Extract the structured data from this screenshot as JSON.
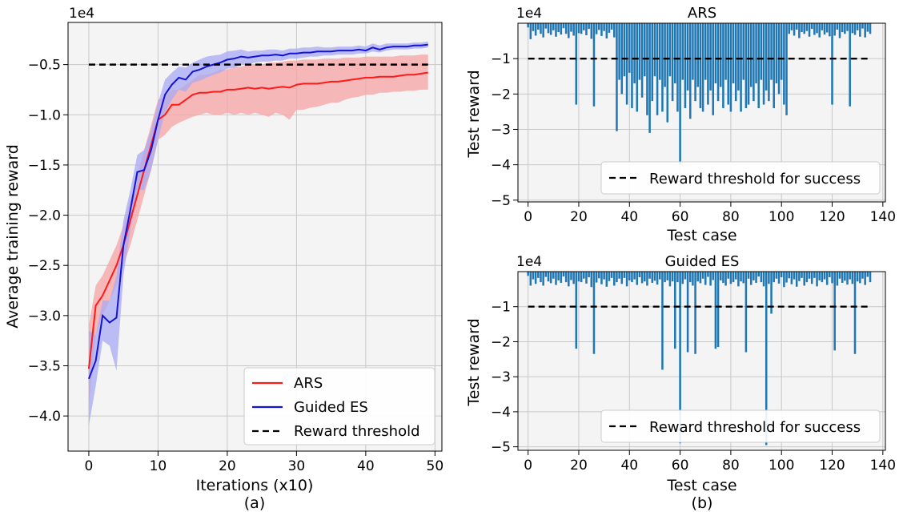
{
  "chart_data": [
    {
      "type": "line",
      "id": "a",
      "xlabel": "Iterations (x10)",
      "ylabel": "Average training reward",
      "caption": "(a)",
      "offset_label": "1e4",
      "xlim": [
        -3,
        51
      ],
      "ylim": [
        -4.35,
        -0.08
      ],
      "xticks": [
        0,
        10,
        20,
        30,
        40,
        50
      ],
      "yticks": [
        -0.5,
        -1.0,
        -1.5,
        -2.0,
        -2.5,
        -3.0,
        -3.5,
        -4.0
      ],
      "ytick_labels": [
        "−0.5",
        "−1.0",
        "−1.5",
        "−2.0",
        "−2.5",
        "−3.0",
        "−3.5",
        "−4.0"
      ],
      "x": [
        0,
        1,
        2,
        3,
        4,
        5,
        6,
        7,
        8,
        9,
        10,
        11,
        12,
        13,
        14,
        15,
        16,
        17,
        18,
        19,
        20,
        21,
        22,
        23,
        24,
        25,
        26,
        27,
        28,
        29,
        30,
        31,
        32,
        33,
        34,
        35,
        36,
        37,
        38,
        39,
        40,
        41,
        42,
        43,
        44,
        45,
        46,
        47,
        48,
        49
      ],
      "series": [
        {
          "name": "ARS",
          "color": "#ff1a1a",
          "band_color": "#f5a3a3",
          "values": [
            -3.53,
            -2.9,
            -2.8,
            -2.65,
            -2.5,
            -2.3,
            -2.05,
            -1.8,
            -1.55,
            -1.3,
            -1.05,
            -1.0,
            -0.9,
            -0.9,
            -0.85,
            -0.8,
            -0.78,
            -0.78,
            -0.77,
            -0.77,
            -0.75,
            -0.75,
            -0.74,
            -0.73,
            -0.74,
            -0.73,
            -0.74,
            -0.73,
            -0.72,
            -0.73,
            -0.7,
            -0.69,
            -0.69,
            -0.69,
            -0.68,
            -0.67,
            -0.67,
            -0.66,
            -0.65,
            -0.64,
            -0.63,
            -0.63,
            -0.62,
            -0.62,
            -0.62,
            -0.61,
            -0.6,
            -0.6,
            -0.59,
            -0.58
          ],
          "lower": [
            -3.9,
            -3.2,
            -3.0,
            -2.85,
            -2.7,
            -2.5,
            -2.3,
            -2.05,
            -1.8,
            -1.55,
            -1.25,
            -1.2,
            -1.12,
            -1.08,
            -1.05,
            -1.02,
            -1.0,
            -0.98,
            -1.0,
            -1.0,
            -0.98,
            -1.0,
            -0.98,
            -1.0,
            -0.98,
            -1.0,
            -1.02,
            -0.98,
            -1.0,
            -1.05,
            -0.95,
            -0.95,
            -0.93,
            -0.92,
            -0.9,
            -0.88,
            -0.88,
            -0.85,
            -0.83,
            -0.82,
            -0.8,
            -0.8,
            -0.78,
            -0.78,
            -0.77,
            -0.77,
            -0.76,
            -0.76,
            -0.75,
            -0.75
          ],
          "upper": [
            -3.1,
            -2.7,
            -2.6,
            -2.45,
            -2.3,
            -2.1,
            -1.85,
            -1.6,
            -1.35,
            -1.1,
            -0.85,
            -0.82,
            -0.75,
            -0.75,
            -0.7,
            -0.65,
            -0.6,
            -0.6,
            -0.58,
            -0.55,
            -0.55,
            -0.52,
            -0.52,
            -0.5,
            -0.5,
            -0.5,
            -0.48,
            -0.48,
            -0.47,
            -0.46,
            -0.46,
            -0.45,
            -0.45,
            -0.45,
            -0.44,
            -0.44,
            -0.44,
            -0.43,
            -0.43,
            -0.43,
            -0.42,
            -0.42,
            -0.42,
            -0.42,
            -0.42,
            -0.41,
            -0.41,
            -0.41,
            -0.4,
            -0.4
          ]
        },
        {
          "name": "Guided ES",
          "color": "#1414d6",
          "band_color": "#a9a9f4",
          "values": [
            -3.63,
            -3.45,
            -3.0,
            -3.07,
            -3.02,
            -2.3,
            -1.95,
            -1.57,
            -1.55,
            -1.35,
            -1.05,
            -0.8,
            -0.7,
            -0.63,
            -0.65,
            -0.57,
            -0.55,
            -0.52,
            -0.5,
            -0.48,
            -0.45,
            -0.44,
            -0.42,
            -0.43,
            -0.42,
            -0.41,
            -0.41,
            -0.4,
            -0.41,
            -0.39,
            -0.39,
            -0.38,
            -0.38,
            -0.37,
            -0.37,
            -0.37,
            -0.36,
            -0.36,
            -0.36,
            -0.35,
            -0.36,
            -0.33,
            -0.35,
            -0.33,
            -0.32,
            -0.32,
            -0.32,
            -0.31,
            -0.31,
            -0.3
          ],
          "lower": [
            -4.1,
            -3.7,
            -3.25,
            -3.3,
            -3.55,
            -2.6,
            -2.15,
            -1.75,
            -1.75,
            -1.55,
            -1.25,
            -0.98,
            -0.85,
            -0.75,
            -0.77,
            -0.68,
            -0.66,
            -0.63,
            -0.6,
            -0.58,
            -0.54,
            -0.53,
            -0.5,
            -0.5,
            -0.48,
            -0.47,
            -0.47,
            -0.46,
            -0.46,
            -0.44,
            -0.44,
            -0.43,
            -0.42,
            -0.42,
            -0.41,
            -0.41,
            -0.4,
            -0.4,
            -0.4,
            -0.39,
            -0.39,
            -0.37,
            -0.38,
            -0.36,
            -0.35,
            -0.35,
            -0.35,
            -0.34,
            -0.34,
            -0.33
          ],
          "upper": [
            -3.15,
            -3.2,
            -2.85,
            -2.85,
            -2.6,
            -2.05,
            -1.75,
            -1.4,
            -1.35,
            -1.15,
            -0.88,
            -0.65,
            -0.58,
            -0.52,
            -0.53,
            -0.48,
            -0.45,
            -0.42,
            -0.41,
            -0.4,
            -0.37,
            -0.36,
            -0.35,
            -0.37,
            -0.36,
            -0.36,
            -0.35,
            -0.35,
            -0.36,
            -0.34,
            -0.34,
            -0.33,
            -0.33,
            -0.32,
            -0.33,
            -0.33,
            -0.32,
            -0.32,
            -0.32,
            -0.31,
            -0.32,
            -0.29,
            -0.31,
            -0.29,
            -0.29,
            -0.29,
            -0.29,
            -0.28,
            -0.28,
            -0.27
          ]
        }
      ],
      "threshold": {
        "name": "Reward threshold",
        "value": -0.5,
        "x_range": [
          0,
          49
        ]
      },
      "legend": {
        "position": "lower-right",
        "entries": [
          "ARS",
          "Guided ES",
          "Reward threshold"
        ]
      }
    },
    {
      "type": "bar",
      "id": "b_top",
      "title": "ARS",
      "xlabel": "Test case",
      "ylabel": "Test reward",
      "offset_label": "1e4",
      "xlim": [
        -4,
        141
      ],
      "ylim": [
        -5.05,
        0
      ],
      "xticks": [
        0,
        20,
        40,
        60,
        80,
        100,
        120,
        140
      ],
      "yticks": [
        -1,
        -2,
        -3,
        -4,
        -5
      ],
      "ytick_labels": [
        "−1",
        "−2",
        "−3",
        "−4",
        "−5"
      ],
      "bar_color": "#1f77b4",
      "x_range": [
        0,
        135
      ],
      "values": [
        -0.12,
        -0.45,
        -0.22,
        -0.35,
        -0.18,
        -0.3,
        -0.4,
        -0.15,
        -0.28,
        -0.33,
        -0.2,
        -0.38,
        -0.25,
        -0.32,
        -0.14,
        -0.3,
        -0.42,
        -0.24,
        -0.35,
        -2.3,
        -0.28,
        -0.3,
        -0.2,
        -0.34,
        -0.16,
        -0.44,
        -2.35,
        -0.31,
        -0.19,
        -0.36,
        -0.22,
        -0.43,
        -0.27,
        -0.18,
        -0.4,
        -3.05,
        -1.6,
        -2.0,
        -1.5,
        -2.3,
        -1.4,
        -2.4,
        -1.7,
        -2.5,
        -1.6,
        -2.1,
        -1.5,
        -2.6,
        -3.1,
        -2.2,
        -1.5,
        -2.6,
        -1.6,
        -2.5,
        -1.8,
        -2.8,
        -1.5,
        -2.2,
        -1.7,
        -2.5,
        -4.0,
        -1.6,
        -2.4,
        -1.9,
        -2.7,
        -1.6,
        -2.2,
        -1.8,
        -2.4,
        -2.5,
        -1.6,
        -2.3,
        -1.9,
        -2.6,
        -1.7,
        -2.2,
        -1.8,
        -2.4,
        -1.6,
        -2.3,
        -2.5,
        -1.7,
        -2.2,
        -1.9,
        -2.5,
        -1.6,
        -2.4,
        -2.3,
        -1.8,
        -2.2,
        -1.7,
        -2.4,
        -1.6,
        -2.3,
        -1.9,
        -2.2,
        -1.6,
        -2.4,
        -1.7,
        -2.0,
        -1.6,
        -2.3,
        -2.6,
        -0.3,
        -0.2,
        -0.35,
        -0.18,
        -0.42,
        -0.25,
        -0.3,
        -0.22,
        -0.38,
        -0.16,
        -0.33,
        -0.28,
        -0.4,
        -0.2,
        -0.32,
        -0.26,
        -0.37,
        -2.3,
        -0.35,
        -0.18,
        -0.42,
        -0.25,
        -0.3,
        -0.22,
        -2.35,
        -0.28,
        -0.33,
        -0.2,
        -0.38,
        -0.15,
        -0.4,
        -0.24,
        -0.3
      ],
      "threshold": {
        "name": "Reward threshold for success",
        "value": -1.0,
        "x_range": [
          0,
          135
        ]
      },
      "legend": {
        "position": "lower-right",
        "entries": [
          "Reward threshold for success"
        ]
      }
    },
    {
      "type": "bar",
      "id": "b_bottom",
      "title": "Guided ES",
      "xlabel": "Test case",
      "ylabel": "Test reward",
      "offset_label": "1e4",
      "caption": "(b)",
      "xlim": [
        -4,
        141
      ],
      "ylim": [
        -5.1,
        0
      ],
      "xticks": [
        0,
        20,
        40,
        60,
        80,
        100,
        120,
        140
      ],
      "yticks": [
        -1,
        -2,
        -3,
        -4,
        -5
      ],
      "ytick_labels": [
        "−1",
        "−2",
        "−3",
        "−4",
        "−5"
      ],
      "bar_color": "#1f77b4",
      "x_range": [
        0,
        135
      ],
      "values": [
        -0.12,
        -0.4,
        -0.22,
        -0.35,
        -0.18,
        -0.3,
        -0.4,
        -0.15,
        -0.28,
        -0.33,
        -0.2,
        -0.38,
        -0.25,
        -0.32,
        -0.14,
        -0.3,
        -0.42,
        -0.24,
        -0.35,
        -2.2,
        -0.28,
        -0.3,
        -0.2,
        -0.34,
        -0.16,
        -0.44,
        -2.35,
        -0.31,
        -0.19,
        -0.36,
        -0.22,
        -0.43,
        -0.27,
        -0.18,
        -0.4,
        -0.3,
        -0.2,
        -0.35,
        -0.18,
        -0.42,
        -0.25,
        -0.3,
        -0.22,
        -0.38,
        -0.16,
        -0.33,
        -0.28,
        -0.4,
        -0.2,
        -0.32,
        -0.26,
        -0.37,
        -0.22,
        -2.8,
        -0.3,
        -0.25,
        -0.42,
        -0.28,
        -2.2,
        -0.3,
        -4.9,
        -0.35,
        -0.22,
        -2.3,
        -0.3,
        -0.4,
        -2.35,
        -0.28,
        -0.33,
        -0.2,
        -0.38,
        -0.15,
        -0.4,
        -0.24,
        -2.2,
        -2.15,
        -0.25,
        -0.32,
        -0.4,
        -0.2,
        -0.35,
        -0.3,
        -0.22,
        -0.42,
        -0.28,
        -0.33,
        -2.3,
        -0.2,
        -0.38,
        -0.25,
        -0.32,
        -0.14,
        -0.3,
        -0.42,
        -4.95,
        -0.35,
        -1.2,
        -0.3,
        -0.2,
        -0.34,
        -0.16,
        -0.44,
        -0.31,
        -0.19,
        -0.36,
        -0.22,
        -0.43,
        -0.27,
        -0.18,
        -0.4,
        -0.3,
        -0.2,
        -0.35,
        -0.18,
        -0.42,
        -0.25,
        -0.3,
        -0.22,
        -0.38,
        -0.16,
        -0.33,
        -2.25,
        -0.4,
        -0.2,
        -0.32,
        -0.26,
        -0.37,
        -0.22,
        -0.35,
        -2.35,
        -0.28,
        -0.33,
        -0.2,
        -0.38,
        -0.15,
        -0.3
      ],
      "threshold": {
        "name": "Reward threshold for success",
        "value": -1.0,
        "x_range": [
          0,
          135
        ]
      },
      "legend": {
        "position": "lower-right",
        "entries": [
          "Reward threshold for success"
        ]
      }
    }
  ]
}
